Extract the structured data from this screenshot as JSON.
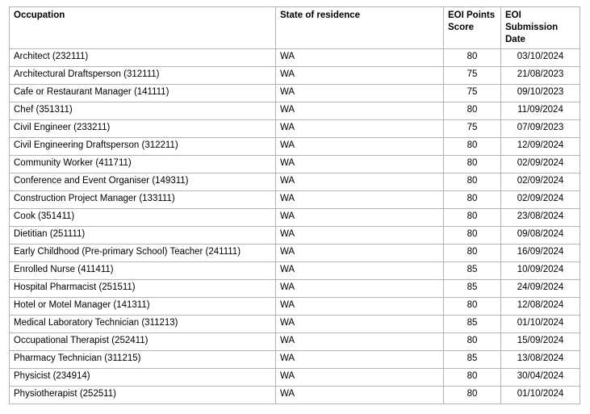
{
  "table": {
    "headers": {
      "occupation": "Occupation",
      "state": "State of residence",
      "points": "EOI Points Score",
      "date": "EOI Submission Date"
    },
    "rows": [
      {
        "occupation": "Architect (232111)",
        "state": "WA",
        "points": "80",
        "date": "03/10/2024"
      },
      {
        "occupation": "Architectural Draftsperson (312111)",
        "state": "WA",
        "points": "75",
        "date": "21/08/2023"
      },
      {
        "occupation": "Cafe or Restaurant Manager (141111)",
        "state": "WA",
        "points": "75",
        "date": "09/10/2023"
      },
      {
        "occupation": "Chef (351311)",
        "state": "WA",
        "points": "80",
        "date": "11/09/2024"
      },
      {
        "occupation": "Civil Engineer (233211)",
        "state": "WA",
        "points": "75",
        "date": "07/09/2023"
      },
      {
        "occupation": "Civil Engineering Draftsperson (312211)",
        "state": "WA",
        "points": "80",
        "date": "12/09/2024"
      },
      {
        "occupation": "Community Worker (411711)",
        "state": "WA",
        "points": "80",
        "date": "02/09/2024"
      },
      {
        "occupation": "Conference and Event Organiser (149311)",
        "state": "WA",
        "points": "80",
        "date": "02/09/2024"
      },
      {
        "occupation": "Construction Project Manager (133111)",
        "state": "WA",
        "points": "80",
        "date": "02/09/2024"
      },
      {
        "occupation": "Cook (351411)",
        "state": "WA",
        "points": "80",
        "date": "23/08/2024"
      },
      {
        "occupation": "Dietitian (251111)",
        "state": "WA",
        "points": "80",
        "date": "09/08/2024"
      },
      {
        "occupation": "Early Childhood (Pre-primary School) Teacher (241111)",
        "state": "WA",
        "points": "80",
        "date": "16/09/2024"
      },
      {
        "occupation": "Enrolled Nurse (411411)",
        "state": "WA",
        "points": "85",
        "date": "10/09/2024"
      },
      {
        "occupation": "Hospital Pharmacist (251511)",
        "state": "WA",
        "points": "85",
        "date": "24/09/2024"
      },
      {
        "occupation": "Hotel or Motel Manager (141311)",
        "state": "WA",
        "points": "80",
        "date": "12/08/2024"
      },
      {
        "occupation": "Medical Laboratory Technician (311213)",
        "state": "WA",
        "points": "85",
        "date": "01/10/2024"
      },
      {
        "occupation": "Occupational Therapist (252411)",
        "state": "WA",
        "points": "80",
        "date": "15/09/2024"
      },
      {
        "occupation": "Pharmacy Technician (311215)",
        "state": "WA",
        "points": "85",
        "date": "13/08/2024"
      },
      {
        "occupation": "Physicist (234914)",
        "state": "WA",
        "points": "80",
        "date": "30/04/2024"
      },
      {
        "occupation": "Physiotherapist (252511)",
        "state": "WA",
        "points": "80",
        "date": "01/10/2024"
      }
    ]
  }
}
